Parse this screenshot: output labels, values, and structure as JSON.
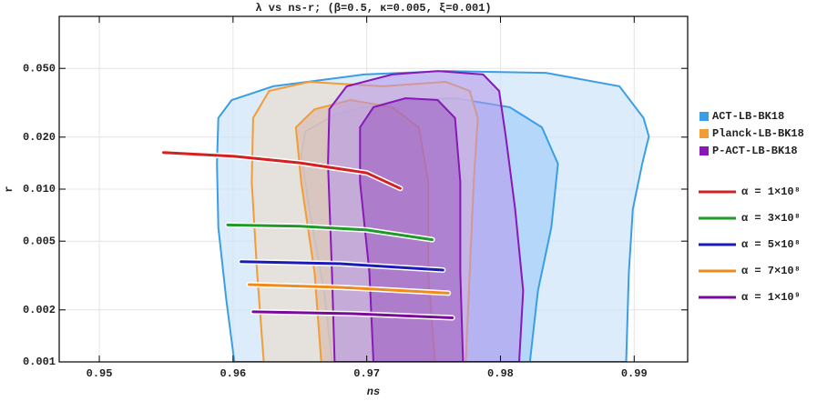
{
  "chart_data": {
    "type": "line",
    "title": "λ vs ns-r; (β=0.5, κ=0.005, ξ=0.001)",
    "x_label": "ns",
    "y_label": "r",
    "xlim": [
      0.947,
      0.994
    ],
    "ylim": [
      0.001,
      0.1
    ],
    "yscale": "log",
    "grid": true,
    "legend": "right",
    "xticks": [
      0.95,
      0.96,
      0.97,
      0.98,
      0.99
    ],
    "yticks": [
      0.001,
      0.002,
      0.005,
      {
        "value": 0.01,
        "label": "0.010"
      },
      {
        "value": 0.02,
        "label": "0.020"
      },
      {
        "value": 0.05,
        "label": "0.050"
      }
    ],
    "regions": [
      {
        "name": "ACT-LB-BK18",
        "color": "#3a9ee6",
        "fills": [
          "rgba(205,228,250,0.7)",
          "rgba(150,200,250,0.55)"
        ],
        "levels": [
          {
            "x": [
              0.9601,
              0.9595,
              0.9589,
              0.9588,
              0.9589,
              0.9599,
              0.963,
              0.9698,
              0.9759,
              0.9834,
              0.9889,
              0.9907,
              0.9911,
              0.9906,
              0.9899,
              0.9896,
              0.9894
            ],
            "y": [
              0.001,
              0.00228,
              0.006,
              0.014,
              0.0258,
              0.0328,
              0.0394,
              0.0461,
              0.0483,
              0.0471,
              0.0394,
              0.0258,
              0.0202,
              0.014,
              0.00766,
              0.00328,
              0.001
            ]
          },
          {
            "x": [
              0.9822,
              0.9828,
              0.9838,
              0.9843,
              0.9831,
              0.9807,
              0.9766,
              0.9725,
              0.9678,
              0.9654,
              0.9651,
              0.9657,
              0.9668,
              0.9674
            ],
            "y": [
              0.001,
              0.00258,
              0.006,
              0.014,
              0.0228,
              0.0298,
              0.0336,
              0.0328,
              0.0274,
              0.0215,
              0.0158,
              0.00766,
              0.00258,
              0.001
            ]
          }
        ]
      },
      {
        "name": "Planck-LB-BK18",
        "color": "#f39c33",
        "fills": [
          "rgba(232,222,210,0.75)",
          "rgba(215,180,170,0.55)"
        ],
        "levels": [
          {
            "x": [
              0.9623,
              0.9618,
              0.9614,
              0.9615,
              0.9627,
              0.9657,
              0.9712,
              0.9759,
              0.9777,
              0.9783,
              0.978,
              0.9777,
              0.9774
            ],
            "y": [
              0.001,
              0.00328,
              0.011,
              0.0258,
              0.037,
              0.0418,
              0.0394,
              0.0418,
              0.037,
              0.0258,
              0.011,
              0.00328,
              0.001
            ]
          },
          {
            "x": [
              0.9666,
              0.9661,
              0.9651,
              0.9647,
              0.9661,
              0.9688,
              0.9719,
              0.9739,
              0.9746,
              0.9746,
              0.9751
            ],
            "y": [
              0.001,
              0.00328,
              0.011,
              0.0228,
              0.029,
              0.0328,
              0.0298,
              0.0228,
              0.011,
              0.00328,
              0.001
            ]
          }
        ]
      },
      {
        "name": "P-ACT-LB-BK18",
        "color": "#8a17b8",
        "fills": [
          "rgba(180,150,235,0.55)",
          "rgba(150,80,190,0.5)"
        ],
        "levels": [
          {
            "x": [
              0.9676,
              0.9674,
              0.9671,
              0.9672,
              0.9685,
              0.9719,
              0.9753,
              0.9787,
              0.9799,
              0.9804,
              0.9811,
              0.9817,
              0.9814
            ],
            "y": [
              0.001,
              0.00328,
              0.014,
              0.029,
              0.0394,
              0.0461,
              0.0483,
              0.0461,
              0.037,
              0.0202,
              0.00766,
              0.00258,
              0.001
            ]
          },
          {
            "x": [
              0.9705,
              0.9702,
              0.9695,
              0.9695,
              0.9705,
              0.9729,
              0.9753,
              0.9766,
              0.977,
              0.977,
              0.9772
            ],
            "y": [
              0.001,
              0.00328,
              0.011,
              0.0228,
              0.0298,
              0.0336,
              0.0328,
              0.0258,
              0.011,
              0.00328,
              0.001
            ]
          }
        ]
      }
    ],
    "series": [
      {
        "name": "α = 1×10⁸",
        "color": "#d42020",
        "x": [
          0.9548,
          0.96,
          0.965,
          0.97,
          0.9725
        ],
        "values": [
          0.0163,
          0.0155,
          0.0142,
          0.0124,
          0.0101
        ]
      },
      {
        "name": "α = 3×10⁸",
        "color": "#1e9a28",
        "x": [
          0.9596,
          0.965,
          0.97,
          0.9749
        ],
        "values": [
          0.0062,
          0.0061,
          0.0058,
          0.0051
        ]
      },
      {
        "name": "α = 5×10⁸",
        "color": "#1a1ab8",
        "x": [
          0.9606,
          0.968,
          0.9757
        ],
        "values": [
          0.0038,
          0.0037,
          0.0034
        ]
      },
      {
        "name": "α = 7×10⁸",
        "color": "#f08a1c",
        "x": [
          0.9612,
          0.968,
          0.9761
        ],
        "values": [
          0.0028,
          0.0027,
          0.0025
        ]
      },
      {
        "name": "α = 1×10⁹",
        "color": "#7a0a9a",
        "x": [
          0.9615,
          0.969,
          0.9764
        ],
        "values": [
          0.00195,
          0.0019,
          0.0018
        ]
      }
    ]
  }
}
